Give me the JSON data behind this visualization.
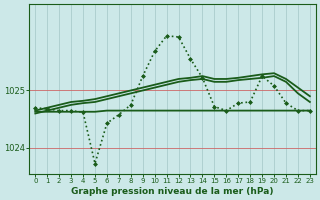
{
  "bg_color": "#cce8e8",
  "grid_color": "#aacccc",
  "line_color": "#1a5c1a",
  "title": "Graphe pression niveau de la mer (hPa)",
  "xlim": [
    -0.5,
    23.5
  ],
  "ylim": [
    1023.55,
    1026.5
  ],
  "yticks": [
    1024,
    1025
  ],
  "xticks": [
    0,
    1,
    2,
    3,
    4,
    5,
    6,
    7,
    8,
    9,
    10,
    11,
    12,
    13,
    14,
    15,
    16,
    17,
    18,
    19,
    20,
    21,
    22,
    23
  ],
  "series": [
    {
      "x": [
        0,
        1,
        2,
        3,
        4,
        5,
        6,
        7,
        8,
        9,
        10,
        11,
        12,
        13,
        14,
        15,
        16,
        17,
        18,
        19,
        20,
        21,
        22,
        23
      ],
      "y": [
        1024.65,
        1024.7,
        1024.75,
        1024.8,
        1024.82,
        1024.85,
        1024.9,
        1024.95,
        1025.0,
        1025.05,
        1025.1,
        1025.15,
        1025.2,
        1025.22,
        1025.25,
        1025.2,
        1025.2,
        1025.22,
        1025.25,
        1025.28,
        1025.3,
        1025.2,
        1025.05,
        1024.9
      ],
      "linestyle": "-",
      "linewidth": 1.3,
      "marker": null
    },
    {
      "x": [
        0,
        1,
        2,
        3,
        4,
        5,
        6,
        7,
        8,
        9,
        10,
        11,
        12,
        13,
        14,
        15,
        16,
        17,
        18,
        19,
        20,
        21,
        22,
        23
      ],
      "y": [
        1024.6,
        1024.65,
        1024.7,
        1024.75,
        1024.78,
        1024.8,
        1024.85,
        1024.9,
        1024.95,
        1025.0,
        1025.05,
        1025.1,
        1025.15,
        1025.18,
        1025.2,
        1025.15,
        1025.15,
        1025.18,
        1025.2,
        1025.22,
        1025.25,
        1025.15,
        1024.95,
        1024.8
      ],
      "linestyle": "-",
      "linewidth": 1.3,
      "marker": null
    },
    {
      "x": [
        0,
        1,
        2,
        3,
        4,
        5,
        6,
        7,
        8,
        9,
        10,
        11,
        12,
        13,
        14,
        15,
        16,
        17,
        18,
        19,
        20,
        21,
        22,
        23
      ],
      "y": [
        1024.63,
        1024.63,
        1024.63,
        1024.63,
        1024.63,
        1024.63,
        1024.65,
        1024.65,
        1024.65,
        1024.65,
        1024.65,
        1024.65,
        1024.65,
        1024.65,
        1024.65,
        1024.65,
        1024.65,
        1024.65,
        1024.65,
        1024.65,
        1024.65,
        1024.65,
        1024.65,
        1024.65
      ],
      "linestyle": "-",
      "linewidth": 1.3,
      "marker": null
    },
    {
      "x": [
        0,
        1,
        2,
        3,
        4,
        5,
        6,
        7,
        8,
        9,
        10,
        11,
        12,
        13,
        14,
        15,
        16,
        17,
        18,
        19,
        20,
        21,
        22,
        23
      ],
      "y": [
        1024.7,
        1024.68,
        1024.65,
        1024.65,
        1024.62,
        1023.73,
        1024.43,
        1024.58,
        1024.75,
        1025.25,
        1025.68,
        1025.95,
        1025.93,
        1025.55,
        1025.22,
        1024.72,
        1024.65,
        1024.78,
        1024.8,
        1025.25,
        1025.08,
        1024.78,
        1024.65,
        1024.65
      ],
      "linestyle": ":",
      "linewidth": 1.2,
      "marker": "D",
      "markersize": 2.0
    }
  ]
}
